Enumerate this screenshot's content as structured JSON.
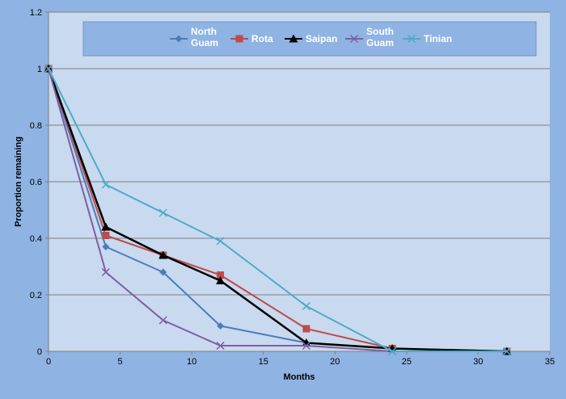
{
  "chart_data": {
    "type": "line",
    "title": "",
    "xlabel": "Months",
    "ylabel": "Proportion remaining",
    "xlim": [
      0,
      35
    ],
    "ylim": [
      0,
      1.2
    ],
    "xticks": [
      0,
      5,
      10,
      15,
      20,
      25,
      30,
      35
    ],
    "yticks": [
      0,
      0.2,
      0.4,
      0.6,
      0.8,
      1,
      1.2
    ],
    "grid": "horizontal",
    "legend_position": "top",
    "series": [
      {
        "name": "North\nGuam",
        "color": "#4a7ebb",
        "marker": "diamond",
        "x": [
          0,
          4,
          8,
          12,
          18,
          24,
          32
        ],
        "values": [
          1,
          0.37,
          0.28,
          0.09,
          0.03,
          0.01,
          0
        ]
      },
      {
        "name": "Rota",
        "color": "#be4b48",
        "marker": "square",
        "x": [
          0,
          4,
          8,
          12,
          18,
          24,
          32
        ],
        "values": [
          1,
          0.41,
          0.34,
          0.27,
          0.08,
          0.01,
          0
        ]
      },
      {
        "name": "Saipan",
        "color": "#000000",
        "marker": "triangle",
        "x": [
          0,
          4,
          8,
          12,
          18,
          24,
          32
        ],
        "values": [
          1,
          0.44,
          0.34,
          0.25,
          0.03,
          0.01,
          0
        ]
      },
      {
        "name": "South\nGuam",
        "color": "#7d5fa0",
        "marker": "x",
        "x": [
          0,
          4,
          8,
          12,
          18,
          24,
          32
        ],
        "values": [
          1,
          0.28,
          0.11,
          0.02,
          0.02,
          0,
          0
        ]
      },
      {
        "name": "Tinian",
        "color": "#4bacc6",
        "marker": "x",
        "x": [
          0,
          4,
          8,
          12,
          18,
          24,
          32
        ],
        "values": [
          1,
          0.59,
          0.49,
          0.39,
          0.16,
          0,
          0
        ]
      }
    ]
  },
  "colors": {
    "page_background": "#8fb3e3",
    "plot_background": "#c9d9ef",
    "legend_background": "#8fb3e3",
    "gridline": "#7f7f7f"
  }
}
